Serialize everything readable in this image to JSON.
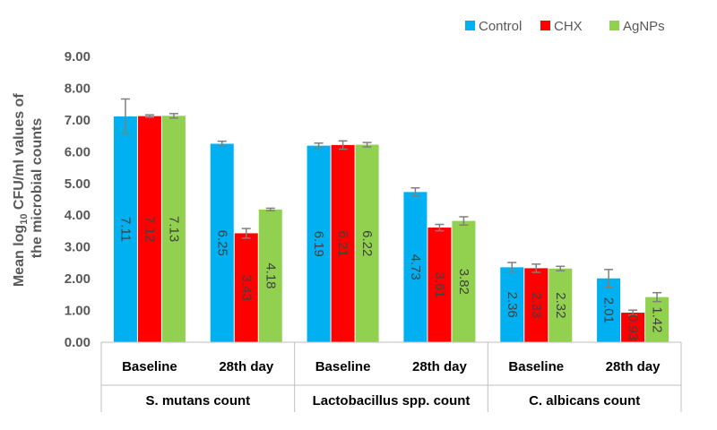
{
  "chart_data": {
    "type": "bar",
    "ylabel_line1_prefix": "Mean log",
    "ylabel_line1_sub": "10",
    "ylabel_line1_suffix": " CFU/ml values of",
    "ylabel_line2": "the microbial counts",
    "ylim": [
      0,
      9
    ],
    "ytick_labels": [
      "0.00",
      "1.00",
      "2.00",
      "3.00",
      "4.00",
      "5.00",
      "6.00",
      "7.00",
      "8.00",
      "9.00"
    ],
    "grid": false,
    "legend_position": "top-right",
    "groups": [
      {
        "label": "S. mutans count",
        "categories": [
          "Baseline",
          "28th day"
        ]
      },
      {
        "label": "Lactobacillus spp. count",
        "categories": [
          "Baseline",
          "28th day"
        ]
      },
      {
        "label": "C. albicans count",
        "categories": [
          "Baseline",
          "28th day"
        ]
      }
    ],
    "series": [
      {
        "name": "Control",
        "color": "#00B0F0",
        "values": [
          7.11,
          6.25,
          6.19,
          4.73,
          2.36,
          2.01
        ],
        "labels": [
          "7.11",
          "6.25",
          "6.19",
          "4.73",
          "2.36",
          "2.01"
        ],
        "errors": [
          0.55,
          0.08,
          0.08,
          0.13,
          0.15,
          0.28
        ]
      },
      {
        "name": "CHX",
        "color": "#FF0000",
        "values": [
          7.12,
          3.43,
          6.21,
          3.61,
          2.33,
          0.93
        ],
        "labels": [
          "7.12",
          "3.43",
          "6.21",
          "3.61",
          "2.33",
          "0.93"
        ],
        "errors": [
          0.04,
          0.15,
          0.13,
          0.1,
          0.13,
          0.08
        ]
      },
      {
        "name": "AgNPs",
        "color": "#92D050",
        "values": [
          7.13,
          4.18,
          6.22,
          3.82,
          2.32,
          1.42
        ],
        "labels": [
          "7.13",
          "4.18",
          "6.22",
          "3.82",
          "2.32",
          "1.42"
        ],
        "errors": [
          0.07,
          0.04,
          0.07,
          0.13,
          0.07,
          0.14
        ]
      }
    ]
  }
}
